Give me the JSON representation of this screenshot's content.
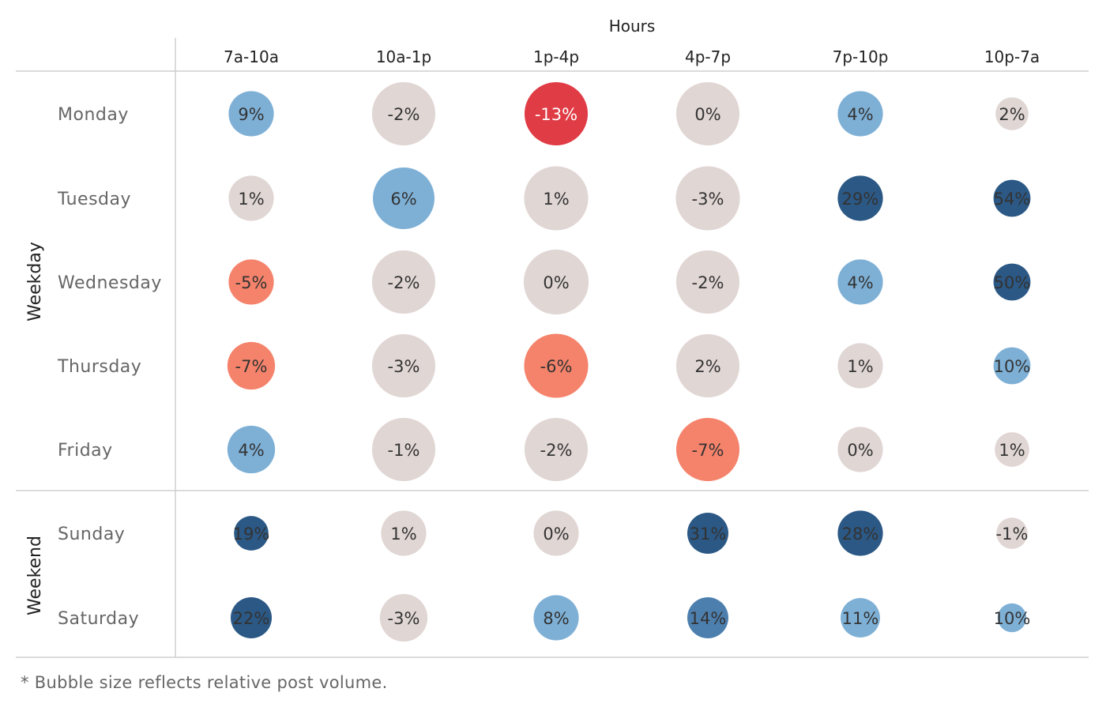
{
  "chart_data": {
    "type": "bubble-matrix",
    "column_group_label": "Hours",
    "columns": [
      "7a-10a",
      "10a-1p",
      "1p-4p",
      "4p-7p",
      "7p-10p",
      "10p-7a"
    ],
    "row_groups": [
      {
        "label": "Weekday",
        "rows": [
          "Monday",
          "Tuesday",
          "Wednesday",
          "Thursday",
          "Friday"
        ]
      },
      {
        "label": "Weekend",
        "rows": [
          "Sunday",
          "Saturday"
        ]
      }
    ],
    "rows": [
      "Monday",
      "Tuesday",
      "Wednesday",
      "Thursday",
      "Friday",
      "Sunday",
      "Saturday"
    ],
    "values": [
      [
        9,
        -2,
        -13,
        0,
        4,
        2
      ],
      [
        1,
        6,
        1,
        -3,
        29,
        54
      ],
      [
        -5,
        -2,
        0,
        -2,
        4,
        50
      ],
      [
        -7,
        -3,
        -6,
        2,
        1,
        10
      ],
      [
        4,
        -1,
        -2,
        -7,
        0,
        1
      ],
      [
        19,
        1,
        0,
        31,
        28,
        -1
      ],
      [
        22,
        -3,
        8,
        14,
        11,
        10
      ]
    ],
    "value_labels": [
      [
        "9%",
        "-2%",
        "-13%",
        "0%",
        "4%",
        "2%"
      ],
      [
        "1%",
        "6%",
        "1%",
        "-3%",
        "29%",
        "54%"
      ],
      [
        "-5%",
        "-2%",
        "0%",
        "-2%",
        "4%",
        "50%"
      ],
      [
        "-7%",
        "-3%",
        "-6%",
        "2%",
        "1%",
        "10%"
      ],
      [
        "4%",
        "-1%",
        "-2%",
        "-7%",
        "0%",
        "1%"
      ],
      [
        "19%",
        "1%",
        "0%",
        "31%",
        "28%",
        "-1%"
      ],
      [
        "22%",
        "-3%",
        "8%",
        "14%",
        "11%",
        "10%"
      ]
    ],
    "relative_post_volume": [
      [
        0.55,
        0.77,
        0.77,
        0.77,
        0.55,
        0.4
      ],
      [
        0.55,
        0.75,
        0.78,
        0.78,
        0.55,
        0.45
      ],
      [
        0.55,
        0.77,
        0.79,
        0.77,
        0.55,
        0.45
      ],
      [
        0.58,
        0.77,
        0.78,
        0.77,
        0.55,
        0.45
      ],
      [
        0.58,
        0.77,
        0.77,
        0.77,
        0.55,
        0.42
      ],
      [
        0.42,
        0.55,
        0.55,
        0.5,
        0.55,
        0.38
      ],
      [
        0.5,
        0.58,
        0.55,
        0.5,
        0.48,
        0.35
      ]
    ],
    "color_scale": {
      "strong_negative": "#e03c45",
      "negative": "#f5836b",
      "neutral": "#e0d6d4",
      "positive_light": "#7eb0d6",
      "positive_mid": "#4d7fae",
      "positive_strong": "#2b5885"
    }
  },
  "footnote": "* Bubble size reflects relative post volume."
}
